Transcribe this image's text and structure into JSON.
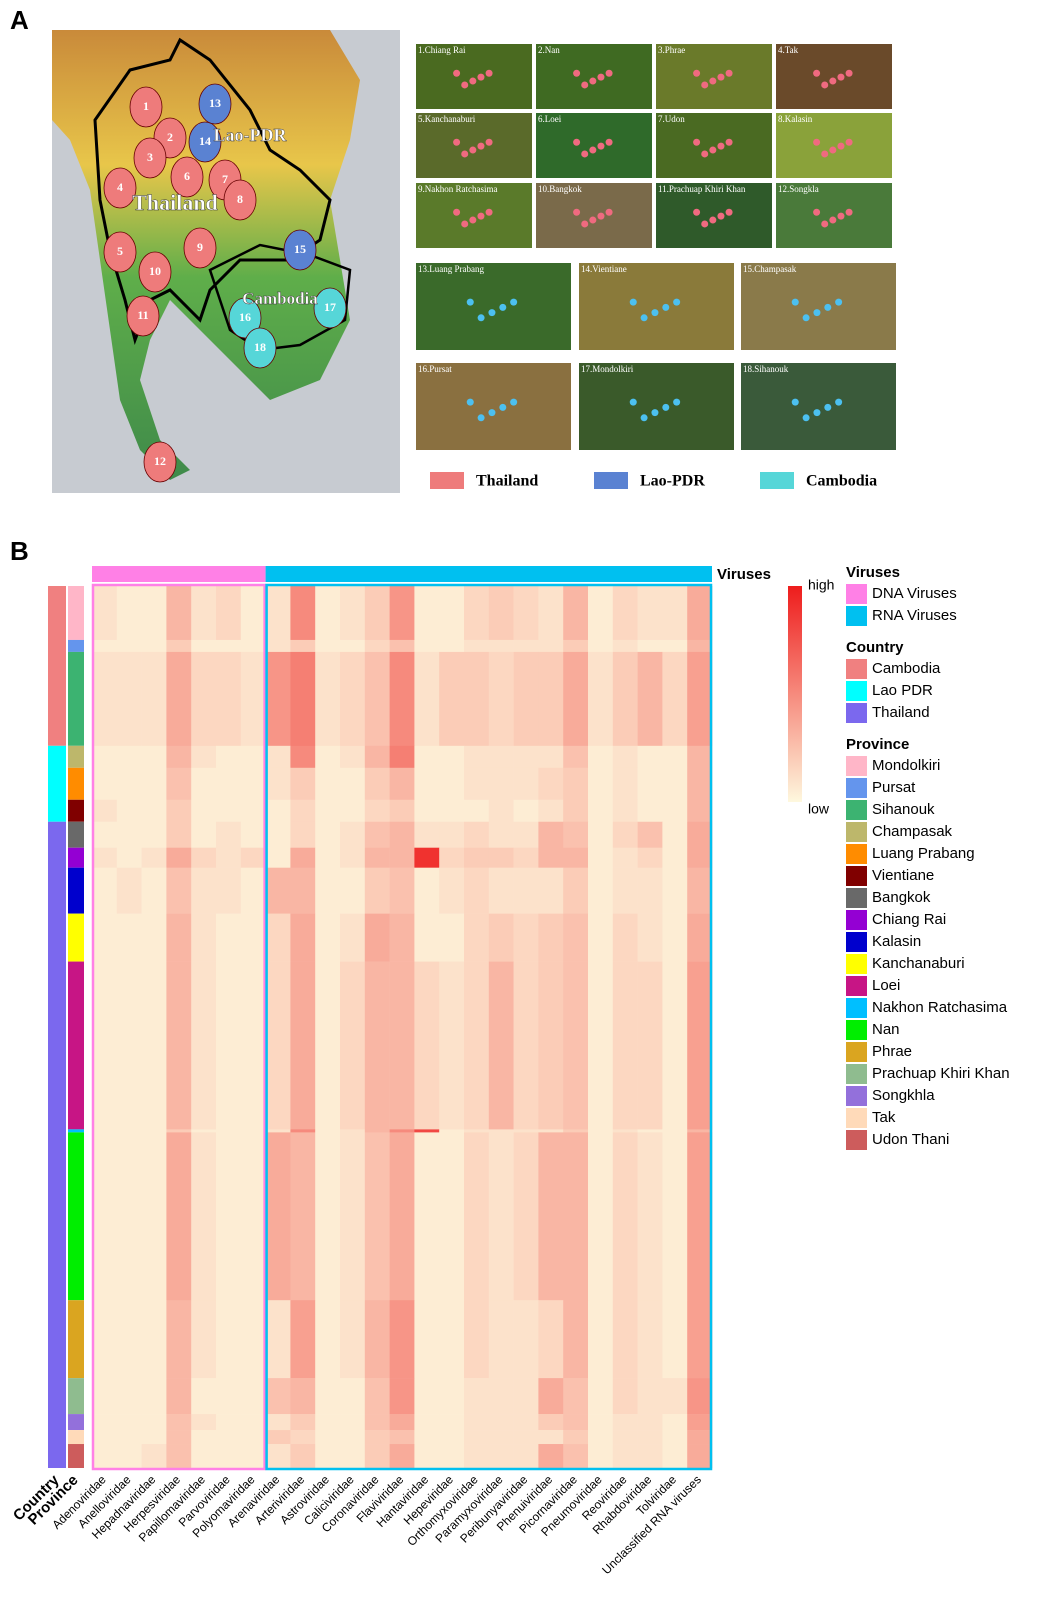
{
  "panel_a": {
    "label": "A",
    "map_countries": [
      "Thailand",
      "Lao-PDR",
      "Cambodia"
    ],
    "map_sites": [
      "1",
      "2",
      "3",
      "4",
      "5",
      "6",
      "7",
      "8",
      "9",
      "10",
      "11",
      "12",
      "13",
      "14",
      "15",
      "16",
      "17",
      "18"
    ],
    "tiles": [
      "1.Chiang Rai",
      "2.Nan",
      "3.Phrae",
      "4.Tak",
      "5.Kanchanaburi",
      "6.Loei",
      "7.Udon",
      "8.Kalasin",
      "9.Nakhon Ratchasima",
      "10.Bangkok",
      "11.Prachuap Khiri Khan",
      "12.Songkla",
      "13.Luang Prabang",
      "14.Vientiane",
      "15.Champasak",
      "16.Pursat",
      "17.Mondolkiri",
      "18.Sihanouk"
    ],
    "legend": [
      {
        "name": "Thailand",
        "color": "#ee7b7b"
      },
      {
        "name": "Lao-PDR",
        "color": "#5a82d2"
      },
      {
        "name": "Cambodia",
        "color": "#56d6d8"
      }
    ]
  },
  "panel_b": {
    "label": "B",
    "row_axis_labels": [
      "Country",
      "Province"
    ],
    "bar_label": "Viruses",
    "color_scale": {
      "high": "high",
      "low": "low",
      "low_color": "#fef8de",
      "high_color": "#ee1c1c"
    },
    "legend_titles": {
      "viruses": "Viruses",
      "country": "Country",
      "province": "Province"
    },
    "virus_groups": [
      {
        "name": "DNA Viruses",
        "color": "#ff80e6",
        "families": [
          "Adenoviridae",
          "Anelloviridae",
          "Hepadnaviridae",
          "Herpesviridae",
          "Papillomaviridae",
          "Parvoviridae",
          "Polyomaviridae"
        ]
      },
      {
        "name": "RNA Viruses",
        "color": "#00c0f0",
        "families": [
          "Arenaviridae",
          "Arteriviridae",
          "Astroviridae",
          "Caliciviridae",
          "Coronaviridae",
          "Flaviviridae",
          "Hantaviridae",
          "Hepeviridae",
          "Orthomyxoviridae",
          "Paramyxoviridae",
          "Peribunyaviridae",
          "Phenuiviridae",
          "Picornaviridae",
          "Pneumoviridae",
          "Reoviridae",
          "Rhabdoviridae",
          "Tolviridae",
          "Unclassified RNA viruses"
        ]
      }
    ],
    "countries": [
      {
        "name": "Cambodia",
        "color": "#f08080",
        "provinces": [
          {
            "name": "Mondolkiri",
            "color": "#ffb6c8",
            "values": [
              0.1,
              0.05,
              0.05,
              0.3,
              0.1,
              0.15,
              0.05,
              0.1,
              0.5,
              0.05,
              0.1,
              0.2,
              0.45,
              0.05,
              0.05,
              0.15,
              0.2,
              0.15,
              0.1,
              0.3,
              0.05,
              0.15,
              0.1,
              0.1,
              0.35
            ]
          },
          {
            "name": "Pursat",
            "color": "#6495ed",
            "values": [
              0.05,
              0.05,
              0.05,
              0.2,
              0.05,
              0.05,
              0.05,
              0.1,
              0.2,
              0.05,
              0.05,
              0.15,
              0.25,
              0.05,
              0.05,
              0.1,
              0.1,
              0.1,
              0.1,
              0.2,
              0.05,
              0.1,
              0.05,
              0.05,
              0.3
            ]
          },
          {
            "name": "Sihanouk",
            "color": "#3cb371",
            "values": [
              0.1,
              0.1,
              0.1,
              0.35,
              0.15,
              0.15,
              0.1,
              0.45,
              0.55,
              0.1,
              0.15,
              0.25,
              0.5,
              0.1,
              0.2,
              0.2,
              0.15,
              0.2,
              0.2,
              0.35,
              0.1,
              0.2,
              0.3,
              0.15,
              0.4
            ]
          }
        ]
      },
      {
        "name": "Lao PDR",
        "color": "#00ffff",
        "provinces": [
          {
            "name": "Champasak",
            "color": "#bdb76b",
            "values": [
              0.05,
              0.05,
              0.05,
              0.3,
              0.1,
              0.05,
              0.05,
              0.1,
              0.5,
              0.05,
              0.1,
              0.3,
              0.55,
              0.05,
              0.05,
              0.1,
              0.1,
              0.1,
              0.1,
              0.25,
              0.05,
              0.1,
              0.05,
              0.05,
              0.3
            ]
          },
          {
            "name": "Luang Prabang",
            "color": "#ff8c00",
            "values": [
              0.05,
              0.05,
              0.05,
              0.25,
              0.05,
              0.05,
              0.05,
              0.1,
              0.2,
              0.05,
              0.05,
              0.2,
              0.3,
              0.05,
              0.05,
              0.1,
              0.1,
              0.1,
              0.15,
              0.2,
              0.05,
              0.1,
              0.05,
              0.05,
              0.3
            ]
          },
          {
            "name": "Vientiane",
            "color": "#800000",
            "values": [
              0.1,
              0.05,
              0.05,
              0.2,
              0.05,
              0.05,
              0.05,
              0.05,
              0.15,
              0.05,
              0.05,
              0.15,
              0.2,
              0.05,
              0.05,
              0.05,
              0.1,
              0.05,
              0.1,
              0.2,
              0.05,
              0.1,
              0.05,
              0.05,
              0.3
            ]
          }
        ]
      },
      {
        "name": "Thailand",
        "color": "#7b68ee",
        "provinces": [
          {
            "name": "Bangkok",
            "color": "#696969",
            "values": [
              0.05,
              0.05,
              0.05,
              0.2,
              0.05,
              0.1,
              0.05,
              0.05,
              0.15,
              0.05,
              0.1,
              0.25,
              0.3,
              0.1,
              0.1,
              0.15,
              0.1,
              0.1,
              0.3,
              0.25,
              0.05,
              0.15,
              0.25,
              0.05,
              0.35
            ]
          },
          {
            "name": "Chiang Rai",
            "color": "#9400d3",
            "values": [
              0.1,
              0.05,
              0.1,
              0.35,
              0.15,
              0.1,
              0.15,
              0.05,
              0.35,
              0.05,
              0.1,
              0.3,
              0.3,
              0.9,
              0.15,
              0.2,
              0.2,
              0.15,
              0.3,
              0.3,
              0.05,
              0.1,
              0.15,
              0.05,
              0.35
            ]
          },
          {
            "name": "Kalasin",
            "color": "#0000cd",
            "values": [
              0.05,
              0.1,
              0.05,
              0.25,
              0.1,
              0.1,
              0.05,
              0.3,
              0.3,
              0.05,
              0.05,
              0.2,
              0.25,
              0.05,
              0.1,
              0.15,
              0.1,
              0.1,
              0.1,
              0.2,
              0.05,
              0.1,
              0.1,
              0.05,
              0.3
            ]
          },
          {
            "name": "Kanchanaburi",
            "color": "#ffff00",
            "values": [
              0.05,
              0.05,
              0.05,
              0.3,
              0.1,
              0.05,
              0.05,
              0.15,
              0.35,
              0.05,
              0.1,
              0.35,
              0.3,
              0.05,
              0.05,
              0.15,
              0.2,
              0.15,
              0.2,
              0.25,
              0.05,
              0.15,
              0.1,
              0.05,
              0.35
            ]
          },
          {
            "name": "Loei",
            "color": "#c71585",
            "values": [
              0.05,
              0.05,
              0.05,
              0.3,
              0.1,
              0.05,
              0.05,
              0.15,
              0.35,
              0.05,
              0.15,
              0.3,
              0.3,
              0.15,
              0.1,
              0.15,
              0.3,
              0.15,
              0.2,
              0.25,
              0.05,
              0.15,
              0.15,
              0.05,
              0.4
            ]
          },
          {
            "name": "Nakhon Ratchasima",
            "color": "#00bfff",
            "values": [
              0.05,
              0.05,
              0.05,
              0.2,
              0.05,
              0.05,
              0.05,
              0.1,
              0.5,
              0.05,
              0.1,
              0.3,
              0.5,
              0.8,
              0.05,
              0.1,
              0.1,
              0.1,
              0.1,
              0.2,
              0.05,
              0.1,
              0.05,
              0.05,
              0.3
            ]
          },
          {
            "name": "Nan",
            "color": "#00ee00",
            "values": [
              0.05,
              0.05,
              0.05,
              0.35,
              0.1,
              0.05,
              0.05,
              0.35,
              0.3,
              0.05,
              0.1,
              0.25,
              0.35,
              0.05,
              0.05,
              0.15,
              0.1,
              0.15,
              0.3,
              0.3,
              0.05,
              0.15,
              0.1,
              0.05,
              0.4
            ]
          },
          {
            "name": "Phrae",
            "color": "#daa520",
            "values": [
              0.05,
              0.05,
              0.05,
              0.3,
              0.1,
              0.05,
              0.05,
              0.1,
              0.4,
              0.05,
              0.1,
              0.3,
              0.45,
              0.05,
              0.05,
              0.15,
              0.1,
              0.1,
              0.15,
              0.3,
              0.05,
              0.15,
              0.1,
              0.05,
              0.4
            ]
          },
          {
            "name": "Prachuap Khiri Khan",
            "color": "#8fbc8f",
            "values": [
              0.05,
              0.05,
              0.05,
              0.3,
              0.05,
              0.05,
              0.05,
              0.25,
              0.3,
              0.05,
              0.05,
              0.25,
              0.45,
              0.05,
              0.05,
              0.1,
              0.1,
              0.1,
              0.35,
              0.25,
              0.05,
              0.15,
              0.1,
              0.1,
              0.45
            ]
          },
          {
            "name": "Songkhla",
            "color": "#9370db",
            "values": [
              0.05,
              0.05,
              0.05,
              0.25,
              0.1,
              0.05,
              0.05,
              0.1,
              0.2,
              0.05,
              0.05,
              0.25,
              0.35,
              0.05,
              0.05,
              0.1,
              0.1,
              0.1,
              0.2,
              0.25,
              0.05,
              0.1,
              0.1,
              0.05,
              0.4
            ]
          },
          {
            "name": "Tak",
            "color": "#ffdab9",
            "values": [
              0.05,
              0.05,
              0.05,
              0.25,
              0.05,
              0.05,
              0.05,
              0.2,
              0.15,
              0.05,
              0.05,
              0.2,
              0.25,
              0.05,
              0.05,
              0.1,
              0.1,
              0.1,
              0.1,
              0.2,
              0.05,
              0.1,
              0.1,
              0.05,
              0.35
            ]
          },
          {
            "name": "Udon Thani",
            "color": "#cd5c5c",
            "values": [
              0.05,
              0.05,
              0.1,
              0.25,
              0.05,
              0.05,
              0.05,
              0.1,
              0.2,
              0.05,
              0.05,
              0.2,
              0.35,
              0.05,
              0.05,
              0.1,
              0.1,
              0.1,
              0.35,
              0.25,
              0.05,
              0.1,
              0.1,
              0.05,
              0.35
            ]
          }
        ]
      }
    ]
  }
}
